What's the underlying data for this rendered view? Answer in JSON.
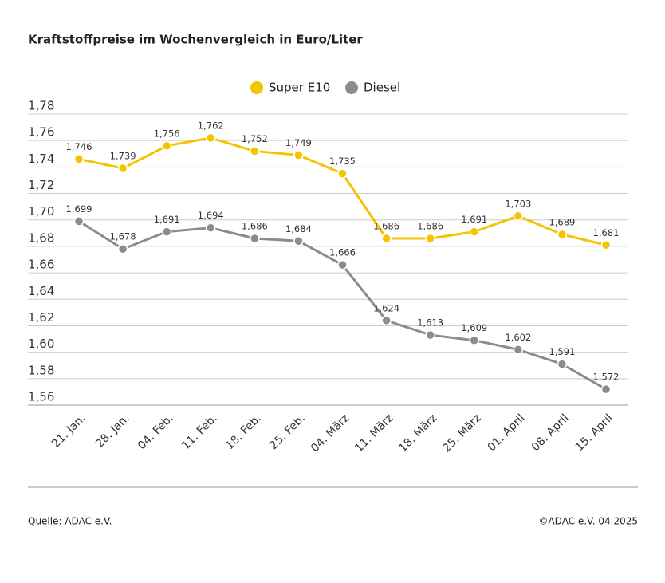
{
  "chart_data": {
    "type": "line",
    "title": "Kraftstoffpreise im Wochenvergleich in Euro/Liter",
    "categories": [
      "21. Jan.",
      "28. Jan.",
      "04. Feb.",
      "11. Feb.",
      "18. Feb.",
      "25. Feb.",
      "04. März",
      "11. März",
      "18. März",
      "25. März",
      "01. April",
      "08. April",
      "15. April"
    ],
    "series": [
      {
        "name": "Super E10",
        "color": "#f5c400",
        "values": [
          1.746,
          1.739,
          1.756,
          1.762,
          1.752,
          1.749,
          1.735,
          1.686,
          1.686,
          1.691,
          1.703,
          1.689,
          1.681
        ],
        "value_labels": [
          "1,746",
          "1,739",
          "1,756",
          "1,762",
          "1,752",
          "1,749",
          "1,735",
          "1,686",
          "1,686",
          "1,691",
          "1,703",
          "1,689",
          "1,681"
        ]
      },
      {
        "name": "Diesel",
        "color": "#8c8c8c",
        "values": [
          1.699,
          1.678,
          1.691,
          1.694,
          1.686,
          1.684,
          1.666,
          1.624,
          1.613,
          1.609,
          1.602,
          1.591,
          1.572
        ],
        "value_labels": [
          "1,699",
          "1,678",
          "1,691",
          "1,694",
          "1,686",
          "1,684",
          "1,666",
          "1,624",
          "1,613",
          "1,609",
          "1,602",
          "1,591",
          "1,572"
        ]
      }
    ],
    "ylim": [
      1.56,
      1.78
    ],
    "yticks": [
      {
        "value": 1.56,
        "label": "1,56"
      },
      {
        "value": 1.58,
        "label": "1,58"
      },
      {
        "value": 1.6,
        "label": "1,60"
      },
      {
        "value": 1.62,
        "label": "1,62"
      },
      {
        "value": 1.64,
        "label": "1,64"
      },
      {
        "value": 1.66,
        "label": "1,66"
      },
      {
        "value": 1.68,
        "label": "1,68"
      },
      {
        "value": 1.7,
        "label": "1,70"
      },
      {
        "value": 1.72,
        "label": "1,72"
      },
      {
        "value": 1.74,
        "label": "1,74"
      },
      {
        "value": 1.76,
        "label": "1,76"
      },
      {
        "value": 1.78,
        "label": "1,78"
      }
    ],
    "grid": true,
    "legend": "top",
    "source": "Quelle: ADAC e.V.",
    "copyright": "©ADAC e.V. 04.2025"
  }
}
